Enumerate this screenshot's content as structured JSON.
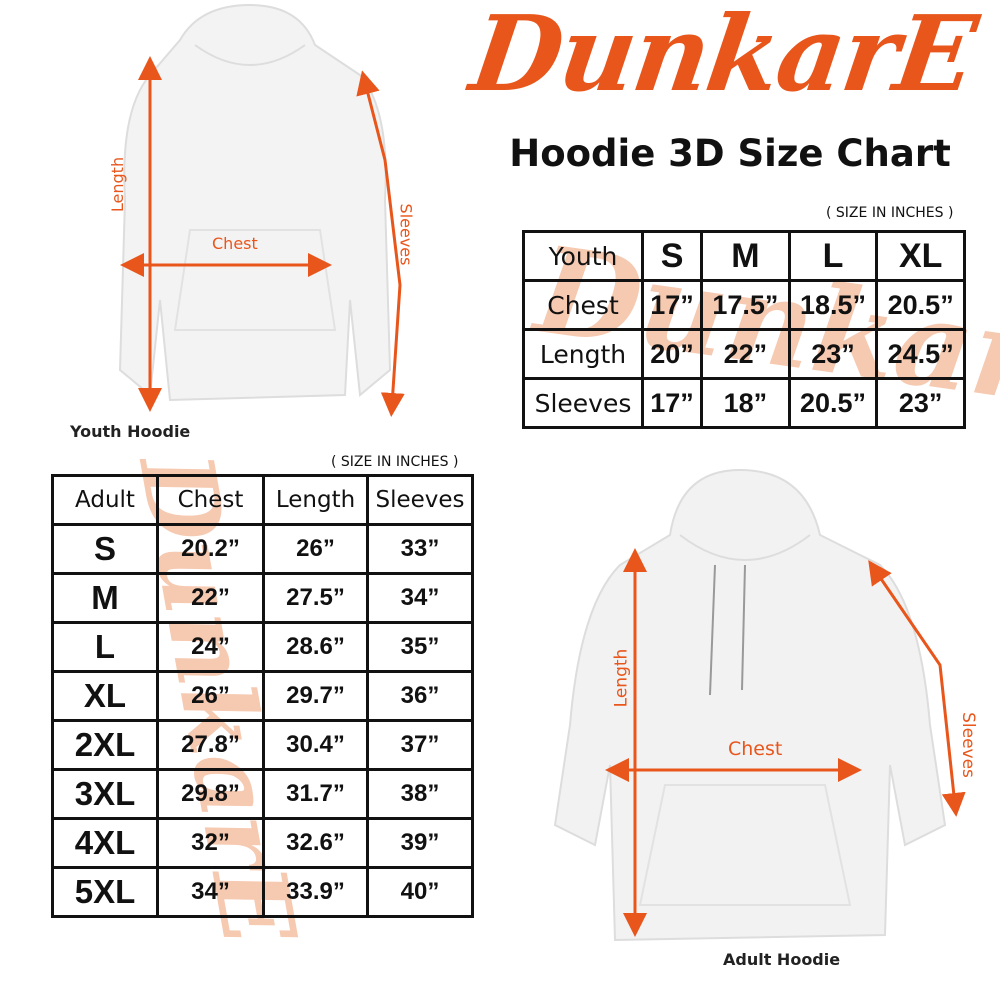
{
  "brand": {
    "logo_text": "DunkarE",
    "color": "#e8561c",
    "watermark_color": "#f6c9b1"
  },
  "title": "Hoodie 3D Size Chart",
  "youth": {
    "unit_note": "( SIZE IN INCHES )",
    "caption": "Youth Hoodie",
    "diagram_labels": {
      "length": "Length",
      "chest": "Chest",
      "sleeves": "Sleeves"
    },
    "header": [
      "Youth",
      "S",
      "M",
      "L",
      "XL"
    ],
    "rows": [
      [
        "Chest",
        "17”",
        "17.5”",
        "18.5”",
        "20.5”"
      ],
      [
        "Length",
        "20”",
        "22”",
        "23”",
        "24.5”"
      ],
      [
        "Sleeves",
        "17”",
        "18”",
        "20.5”",
        "23”"
      ]
    ]
  },
  "adult": {
    "unit_note": "( SIZE IN INCHES )",
    "caption": "Adult Hoodie",
    "diagram_labels": {
      "length": "Length",
      "chest": "Chest",
      "sleeves": "Sleeves"
    },
    "header": [
      "Adult",
      "Chest",
      "Length",
      "Sleeves"
    ],
    "rows": [
      [
        "S",
        "20.2”",
        "26”",
        "33”"
      ],
      [
        "M",
        "22”",
        "27.5”",
        "34”"
      ],
      [
        "L",
        "24”",
        "28.6”",
        "35”"
      ],
      [
        "XL",
        "26”",
        "29.7”",
        "36”"
      ],
      [
        "2XL",
        "27.8”",
        "30.4”",
        "37”"
      ],
      [
        "3XL",
        "29.8”",
        "31.7”",
        "38”"
      ],
      [
        "4XL",
        "32”",
        "32.6”",
        "39”"
      ],
      [
        "5XL",
        "34”",
        "33.9”",
        "40”"
      ]
    ]
  }
}
